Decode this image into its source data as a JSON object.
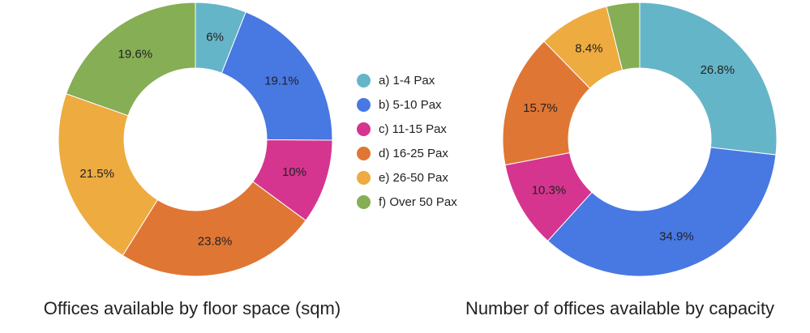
{
  "legend": {
    "items": [
      {
        "label": "a) 1-4 Pax",
        "color": "#65b5c8"
      },
      {
        "label": "b) 5-10 Pax",
        "color": "#4878e2"
      },
      {
        "label": "c) 11-15 Pax",
        "color": "#d5358f"
      },
      {
        "label": "d) 16-25 Pax",
        "color": "#e07634"
      },
      {
        "label": "e) 26-50 Pax",
        "color": "#edab40"
      },
      {
        "label": "f) Over 50 Pax",
        "color": "#86ae55"
      }
    ]
  },
  "chart_data": [
    {
      "type": "pie",
      "variant": "donut",
      "title": "Offices available by floor space (sqm)",
      "categories": [
        "a) 1-4 Pax",
        "b) 5-10 Pax",
        "c) 11-15 Pax",
        "d) 16-25 Pax",
        "e) 26-50 Pax",
        "f) Over 50 Pax"
      ],
      "values": [
        6,
        19.1,
        10,
        23.8,
        21.5,
        19.6
      ],
      "labels": [
        "6%",
        "19.1%",
        "10%",
        "23.8%",
        "21.5%",
        "19.6%"
      ],
      "colors": [
        "#65b5c8",
        "#4878e2",
        "#d5358f",
        "#e07634",
        "#edab40",
        "#86ae55"
      ]
    },
    {
      "type": "pie",
      "variant": "donut",
      "title": "Number of offices available by capacity",
      "categories": [
        "a) 1-4 Pax",
        "b) 5-10 Pax",
        "c) 11-15 Pax",
        "d) 16-25 Pax",
        "e) 26-50 Pax",
        "f) Over 50 Pax"
      ],
      "values": [
        26.8,
        34.9,
        10.3,
        15.7,
        8.4,
        3.9
      ],
      "labels": [
        "26.8%",
        "34.9%",
        "10.3%",
        "15.7%",
        "8.4%",
        ""
      ],
      "colors": [
        "#65b5c8",
        "#4878e2",
        "#d5358f",
        "#e07634",
        "#edab40",
        "#86ae55"
      ]
    }
  ]
}
